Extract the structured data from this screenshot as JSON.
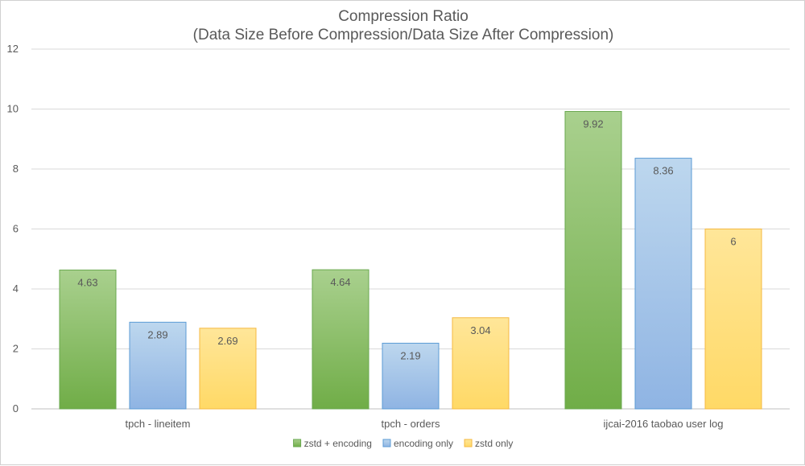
{
  "chart_data": {
    "type": "bar",
    "title": "Compression Ratio",
    "subtitle": "(Data Size Before Compression/Data Size After Compression)",
    "xlabel": "",
    "ylabel": "",
    "ylim": [
      0,
      12
    ],
    "yticks": [
      "0",
      "2",
      "4",
      "6",
      "8",
      "10",
      "12"
    ],
    "grid": true,
    "legend_position": "bottom",
    "categories": [
      "tpch - lineitem",
      "tpch - orders",
      "ijcai-2016  taobao  user log"
    ],
    "series": [
      {
        "name": "zstd + encoding",
        "values": [
          4.63,
          4.64,
          9.92
        ],
        "labels": [
          "4.63",
          "4.64",
          "9.92"
        ],
        "color_top": "#a9d08e",
        "color_bottom": "#70ad47",
        "stroke": "#6aa84f"
      },
      {
        "name": "encoding only",
        "values": [
          2.89,
          2.19,
          8.36
        ],
        "labels": [
          "2.89",
          "2.19",
          "8.36"
        ],
        "color_top": "#bdd7ee",
        "color_bottom": "#8fb4e3",
        "stroke": "#5b9bd5"
      },
      {
        "name": "zstd only",
        "values": [
          2.69,
          3.04,
          6
        ],
        "labels": [
          "2.69",
          "3.04",
          "6"
        ],
        "color_top": "#ffe699",
        "color_bottom": "#ffd966",
        "stroke": "#f4b942"
      }
    ]
  }
}
